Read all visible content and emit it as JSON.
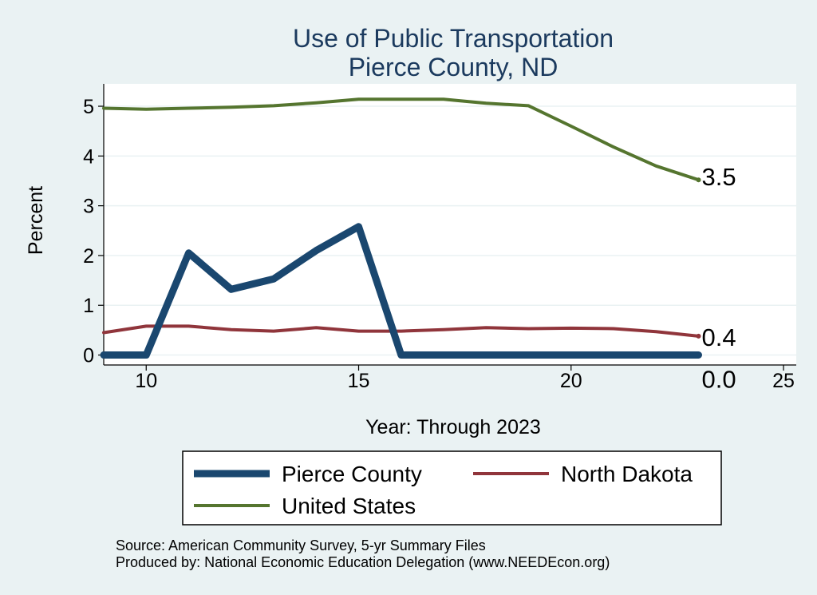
{
  "chart_data": {
    "type": "line",
    "title": [
      "Use of Public Transportation",
      "Pierce County, ND"
    ],
    "xlabel": "Year: Through 2023",
    "ylabel": "Percent",
    "xlim": [
      9,
      25.3
    ],
    "ylim": [
      -0.2,
      5.45
    ],
    "xticks": [
      10,
      15,
      20,
      25
    ],
    "yticks": [
      0,
      1,
      2,
      3,
      4,
      5
    ],
    "grid": true,
    "legend_position": "bottom",
    "x": [
      9,
      10,
      11,
      12,
      13,
      14,
      15,
      16,
      17,
      18,
      19,
      20,
      21,
      22,
      23
    ],
    "series": [
      {
        "name": "Pierce County",
        "color": "#1a476f",
        "values": [
          0,
          0,
          2.05,
          1.32,
          1.53,
          2.1,
          2.58,
          0,
          0,
          0,
          0,
          0,
          0,
          0,
          0
        ],
        "end_label": "0.0"
      },
      {
        "name": "North Dakota",
        "color": "#90353b",
        "values": [
          0.45,
          0.58,
          0.58,
          0.51,
          0.48,
          0.55,
          0.48,
          0.48,
          0.51,
          0.55,
          0.53,
          0.54,
          0.53,
          0.47,
          0.38
        ],
        "end_label": "0.4"
      },
      {
        "name": "United States",
        "color": "#55752f",
        "values": [
          4.96,
          4.94,
          4.96,
          4.98,
          5.01,
          5.07,
          5.14,
          5.14,
          5.14,
          5.06,
          5.01,
          4.6,
          4.18,
          3.8,
          3.52
        ],
        "end_label": "3.5"
      }
    ]
  },
  "notes": {
    "source": "Source: American Community Survey, 5-yr Summary Files",
    "produced": "Produced by: National Economic Education Delegation (www.NEEDEcon.org)"
  }
}
